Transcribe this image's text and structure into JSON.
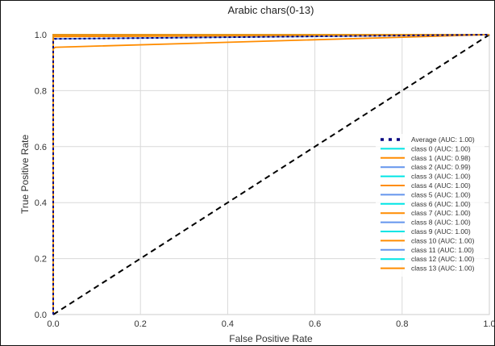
{
  "chart_data": {
    "type": "line",
    "title": "Arabic chars(0-13)",
    "xlabel": "False Positive Rate",
    "ylabel": "True Positive Rate",
    "xlim": [
      0,
      1
    ],
    "ylim": [
      0,
      1
    ],
    "xticks": [
      "0.0",
      "0.2",
      "0.4",
      "0.6",
      "0.8",
      "1.0"
    ],
    "yticks": [
      "0.0",
      "0.2",
      "0.4",
      "0.6",
      "0.8",
      "1.0"
    ],
    "grid": true,
    "legend_position": "lower-right",
    "chance_line": {
      "x": [
        0,
        1
      ],
      "y": [
        0,
        1
      ],
      "color": "#000000",
      "style": "dashed"
    },
    "series": [
      {
        "name": "Average (AUC: 1.00)",
        "color": "#000080",
        "style": "dotted",
        "x": [
          0,
          0,
          0.003,
          1
        ],
        "y": [
          0,
          0.975,
          0.985,
          1
        ]
      },
      {
        "name": "class 0 (AUC: 1.00)",
        "color": "#00e5e5",
        "style": "solid",
        "x": [
          0,
          0,
          1
        ],
        "y": [
          0,
          1.0,
          1
        ]
      },
      {
        "name": "class 1 (AUC: 0.98)",
        "color": "#ff8c00",
        "style": "solid",
        "x": [
          0,
          0,
          0.005,
          1
        ],
        "y": [
          0,
          0.95,
          0.955,
          1
        ]
      },
      {
        "name": "class 2 (AUC: 0.99)",
        "color": "#6495ed",
        "style": "solid",
        "x": [
          0,
          0,
          1
        ],
        "y": [
          0,
          0.985,
          1
        ]
      },
      {
        "name": "class 3 (AUC: 1.00)",
        "color": "#00e5e5",
        "style": "solid",
        "x": [
          0,
          0,
          1
        ],
        "y": [
          0,
          1.0,
          1
        ]
      },
      {
        "name": "class 4 (AUC: 1.00)",
        "color": "#ff8c00",
        "style": "solid",
        "x": [
          0,
          0,
          1
        ],
        "y": [
          0,
          0.993,
          1
        ]
      },
      {
        "name": "class 5 (AUC: 1.00)",
        "color": "#6495ed",
        "style": "solid",
        "x": [
          0,
          0,
          1
        ],
        "y": [
          0,
          1.0,
          1
        ]
      },
      {
        "name": "class 6 (AUC: 1.00)",
        "color": "#00e5e5",
        "style": "solid",
        "x": [
          0,
          0,
          1
        ],
        "y": [
          0,
          1.0,
          1
        ]
      },
      {
        "name": "class 7 (AUC: 1.00)",
        "color": "#ff8c00",
        "style": "solid",
        "x": [
          0,
          0,
          1
        ],
        "y": [
          0,
          0.995,
          1
        ]
      },
      {
        "name": "class 8 (AUC: 1.00)",
        "color": "#6495ed",
        "style": "solid",
        "x": [
          0,
          0,
          1
        ],
        "y": [
          0,
          1.0,
          1
        ]
      },
      {
        "name": "class 9 (AUC: 1.00)",
        "color": "#00e5e5",
        "style": "solid",
        "x": [
          0,
          0,
          1
        ],
        "y": [
          0,
          1.0,
          1
        ]
      },
      {
        "name": "class 10 (AUC: 1.00)",
        "color": "#ff8c00",
        "style": "solid",
        "x": [
          0,
          0,
          1
        ],
        "y": [
          0,
          0.997,
          1
        ]
      },
      {
        "name": "class 11 (AUC: 1.00)",
        "color": "#6495ed",
        "style": "solid",
        "x": [
          0,
          0,
          1
        ],
        "y": [
          0,
          1.0,
          1
        ]
      },
      {
        "name": "class 12 (AUC: 1.00)",
        "color": "#00e5e5",
        "style": "solid",
        "x": [
          0,
          0,
          1
        ],
        "y": [
          0,
          1.0,
          1
        ]
      },
      {
        "name": "class 13 (AUC: 1.00)",
        "color": "#ff8c00",
        "style": "solid",
        "x": [
          0,
          0,
          1
        ],
        "y": [
          0,
          1.0,
          1
        ]
      }
    ]
  }
}
